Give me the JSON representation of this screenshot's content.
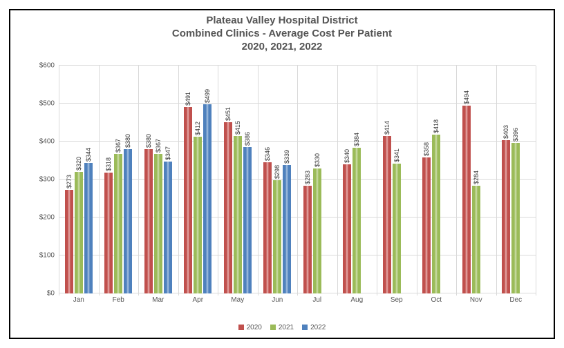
{
  "chart": {
    "type": "bar",
    "title_lines": [
      "Plateau Valley Hospital District",
      "Combined Clinics  - Average Cost Per Patient",
      "2020, 2021, 2022"
    ],
    "title_color": "#555555",
    "title_fontsize": 15,
    "background_color": "#ffffff",
    "border_color": "#000000",
    "grid_color": "#d9d9d9",
    "categories": [
      "Jan",
      "Feb",
      "Mar",
      "Apr",
      "May",
      "Jun",
      "Jul",
      "Aug",
      "Sep",
      "Oct",
      "Nov",
      "Dec"
    ],
    "ylim": [
      0,
      600
    ],
    "ytick_step": 100,
    "ytick_prefix": "$",
    "label_fontsize": 10,
    "datalabel_fontsize": 9,
    "datalabel_rotation": -90,
    "bar_value_prefix": "$",
    "series": [
      {
        "name": "2020",
        "fill": "#c0504d",
        "highlight": "#e8b0ae",
        "values": [
          273,
          318,
          380,
          491,
          451,
          346,
          283,
          340,
          414,
          358,
          494,
          403
        ]
      },
      {
        "name": "2021",
        "fill": "#9bbb59",
        "highlight": "#d0e0b0",
        "values": [
          320,
          367,
          367,
          412,
          415,
          298,
          330,
          384,
          341,
          418,
          284,
          396
        ]
      },
      {
        "name": "2022",
        "fill": "#4f81bd",
        "highlight": "#aac4e2",
        "values": [
          344,
          380,
          347,
          499,
          386,
          339,
          null,
          null,
          null,
          null,
          null,
          null
        ]
      }
    ],
    "group_gap_ratio": 0.3,
    "series_gap_ratio": 0.04,
    "bar_3d_highlight_ratio": 0.35
  }
}
